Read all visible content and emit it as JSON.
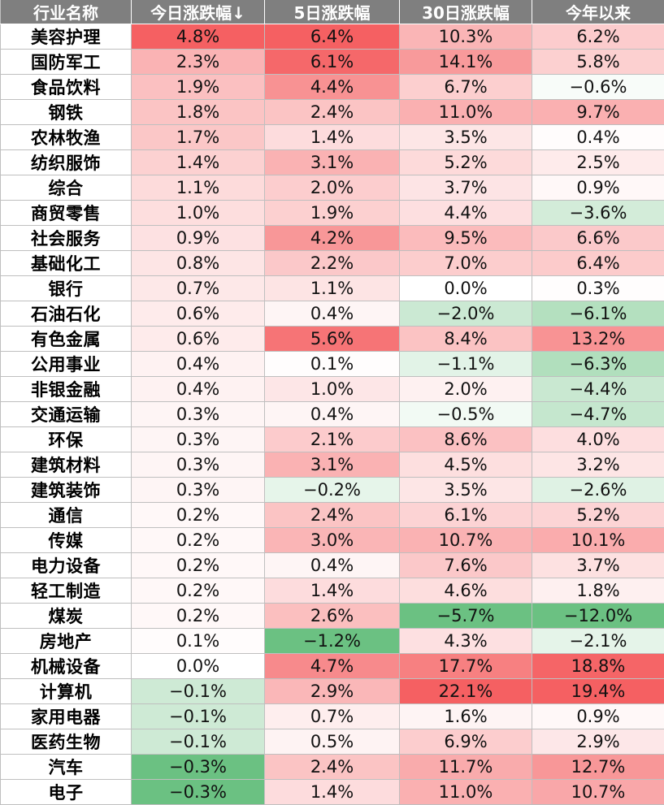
{
  "chart_data": {
    "type": "table",
    "columns": [
      "行业名称",
      "今日涨跌幅↓",
      "5日涨跌幅",
      "30日涨跌幅",
      "今年以来"
    ],
    "rows": [
      [
        "美容护理",
        "4.8%",
        "6.4%",
        "10.3%",
        "6.2%"
      ],
      [
        "国防军工",
        "2.3%",
        "6.1%",
        "14.1%",
        "5.8%"
      ],
      [
        "食品饮料",
        "1.9%",
        "4.4%",
        "6.7%",
        "−0.6%"
      ],
      [
        "钢铁",
        "1.8%",
        "2.4%",
        "11.0%",
        "9.7%"
      ],
      [
        "农林牧渔",
        "1.7%",
        "1.4%",
        "3.5%",
        "0.4%"
      ],
      [
        "纺织服饰",
        "1.4%",
        "3.1%",
        "5.2%",
        "2.5%"
      ],
      [
        "综合",
        "1.1%",
        "2.0%",
        "3.7%",
        "0.9%"
      ],
      [
        "商贸零售",
        "1.0%",
        "1.9%",
        "4.4%",
        "−3.6%"
      ],
      [
        "社会服务",
        "0.9%",
        "4.2%",
        "9.5%",
        "6.6%"
      ],
      [
        "基础化工",
        "0.8%",
        "2.2%",
        "7.0%",
        "6.4%"
      ],
      [
        "银行",
        "0.7%",
        "1.1%",
        "0.0%",
        "0.3%"
      ],
      [
        "石油石化",
        "0.6%",
        "0.4%",
        "−2.0%",
        "−6.1%"
      ],
      [
        "有色金属",
        "0.6%",
        "5.6%",
        "8.4%",
        "13.2%"
      ],
      [
        "公用事业",
        "0.4%",
        "0.1%",
        "−1.1%",
        "−6.3%"
      ],
      [
        "非银金融",
        "0.4%",
        "1.0%",
        "2.0%",
        "−4.4%"
      ],
      [
        "交通运输",
        "0.3%",
        "0.4%",
        "−0.5%",
        "−4.7%"
      ],
      [
        "环保",
        "0.3%",
        "2.1%",
        "8.6%",
        "4.0%"
      ],
      [
        "建筑材料",
        "0.3%",
        "3.1%",
        "4.5%",
        "3.2%"
      ],
      [
        "建筑装饰",
        "0.3%",
        "−0.2%",
        "3.5%",
        "−2.6%"
      ],
      [
        "通信",
        "0.2%",
        "2.4%",
        "6.1%",
        "5.2%"
      ],
      [
        "传媒",
        "0.2%",
        "3.0%",
        "10.7%",
        "10.1%"
      ],
      [
        "电力设备",
        "0.2%",
        "0.4%",
        "7.6%",
        "3.7%"
      ],
      [
        "轻工制造",
        "0.2%",
        "1.4%",
        "4.6%",
        "1.8%"
      ],
      [
        "煤炭",
        "0.2%",
        "2.6%",
        "−5.7%",
        "−12.0%"
      ],
      [
        "房地产",
        "0.1%",
        "−1.2%",
        "4.3%",
        "−2.1%"
      ],
      [
        "机械设备",
        "0.0%",
        "4.7%",
        "17.7%",
        "18.8%"
      ],
      [
        "计算机",
        "−0.1%",
        "2.9%",
        "22.1%",
        "19.4%"
      ],
      [
        "家用电器",
        "−0.1%",
        "0.7%",
        "1.6%",
        "0.9%"
      ],
      [
        "医药生物",
        "−0.1%",
        "0.5%",
        "6.9%",
        "2.9%"
      ],
      [
        "汽车",
        "−0.3%",
        "2.4%",
        "11.7%",
        "12.7%"
      ],
      [
        "电子",
        "−0.3%",
        "1.4%",
        "11.0%",
        "10.7%"
      ]
    ]
  },
  "colors": {
    "header_bg": "#7f7f7f",
    "header_text": "#ffffff",
    "positive_max": "#f4585a",
    "negative_max": "#63be7b",
    "neutral": "#ffffff",
    "border": "#bfbfbf"
  }
}
